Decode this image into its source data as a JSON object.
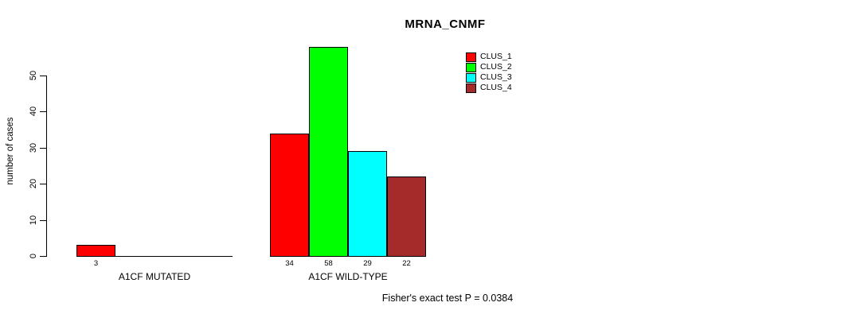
{
  "chart_data": {
    "type": "bar",
    "title": "MRNA_CNMF",
    "ylabel": "number of cases",
    "xlabel": "",
    "categories": [
      "A1CF MUTATED",
      "A1CF WILD-TYPE"
    ],
    "series": [
      {
        "name": "CLUS_1",
        "color": "#ff0000",
        "values": [
          3,
          34
        ]
      },
      {
        "name": "CLUS_2",
        "color": "#00ff00",
        "values": [
          0,
          58
        ]
      },
      {
        "name": "CLUS_3",
        "color": "#00ffff",
        "values": [
          0,
          29
        ]
      },
      {
        "name": "CLUS_4",
        "color": "#a52a2a",
        "values": [
          0,
          22
        ]
      }
    ],
    "bar_value_labels_shown": [
      "3",
      "34",
      "58",
      "29",
      "22"
    ],
    "yticks": [
      0,
      10,
      20,
      30,
      40,
      50
    ],
    "ylim": [
      0,
      58
    ],
    "grid": false,
    "legend": {
      "position": "top-right",
      "entries": [
        "CLUS_1",
        "CLUS_2",
        "CLUS_3",
        "CLUS_4"
      ]
    },
    "annotation": "Fisher's exact test P = 0.0384"
  }
}
